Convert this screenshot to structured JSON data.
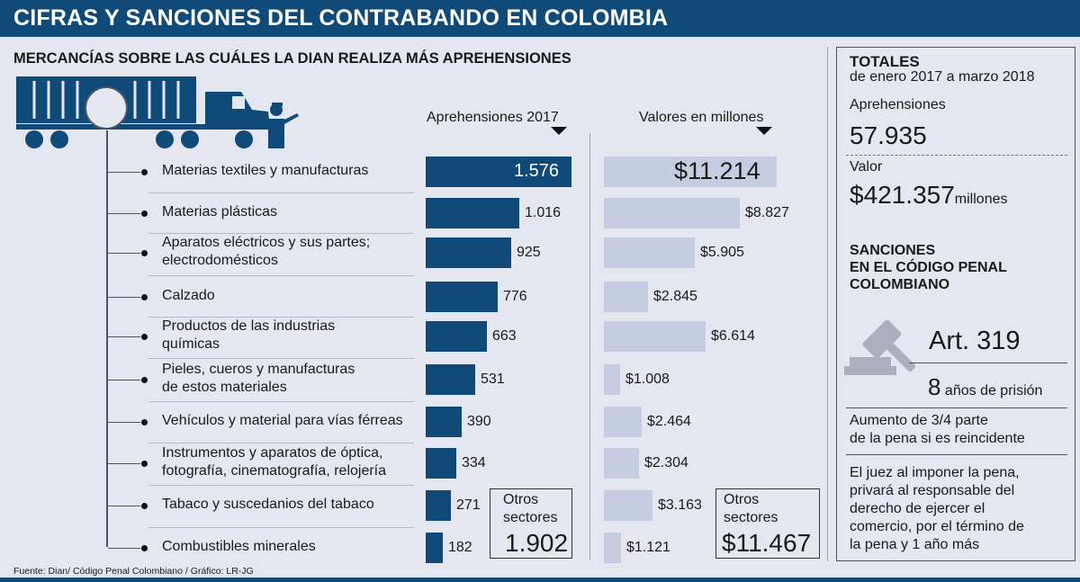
{
  "header": {
    "title": "CIFRAS Y SANCIONES DEL CONTRABANDO EN COLOMBIA"
  },
  "subtitle": "MERCANCÍAS SOBRE LAS CUÁLES LA DIAN REALIZA MÁS APREHENSIONES",
  "col_heads": {
    "apprehensions": "Aprehensiones 2017",
    "values": "Valores en millones"
  },
  "colors": {
    "header": "#0f4a78",
    "bar": "#0f4a78",
    "value_bar": "#c5cde2",
    "background": "#e4e7ef"
  },
  "chart_data": {
    "type": "bar",
    "categories": [
      "Materias textiles y manufacturas",
      "Materias plásticas",
      "Aparatos eléctricos y sus partes; electrodomésticos",
      "Calzado",
      "Productos de las industrias químicas",
      "Pieles, cueros y manufacturas de estos materiales",
      "Vehículos y material para vías férreas",
      "Instrumentos y aparatos de óptica, fotografía, cinematografía, relojería",
      "Tabaco y suscedanios del tabaco",
      "Combustibles minerales"
    ],
    "category_lines": [
      [
        "Materias textiles y manufacturas"
      ],
      [
        "Materias plásticas"
      ],
      [
        "Aparatos eléctricos y sus partes;",
        "electrodomésticos"
      ],
      [
        "Calzado"
      ],
      [
        "Productos de las industrias",
        "químicas"
      ],
      [
        "Pieles, cueros y manufacturas",
        "de estos materiales"
      ],
      [
        "Vehículos y material para vías férreas"
      ],
      [
        "Instrumentos y aparatos de óptica,",
        "fotografía, cinematografía, relojería"
      ],
      [
        "Tabaco y suscedanios del tabaco"
      ],
      [
        "Combustibles minerales"
      ]
    ],
    "series": [
      {
        "name": "Aprehensiones 2017",
        "values": [
          1576,
          1016,
          925,
          776,
          663,
          531,
          390,
          334,
          271,
          182
        ],
        "labels": [
          "1.576",
          "1.016",
          "925",
          "776",
          "663",
          "531",
          "390",
          "334",
          "271",
          "182"
        ]
      },
      {
        "name": "Valores en millones",
        "values": [
          11214,
          8827,
          5905,
          2845,
          6614,
          1008,
          2464,
          2304,
          3163,
          1121
        ],
        "labels": [
          "$11.214",
          "$8.827",
          "$5.905",
          "$2.845",
          "$6.614",
          "$1.008",
          "$2.464",
          "$2.304",
          "$3.163",
          "$1.121"
        ]
      }
    ],
    "others": {
      "label_lines": [
        "Otros",
        "sectores"
      ],
      "apprehensions": "1.902",
      "values": "$11.467"
    }
  },
  "totals": {
    "title": "TOTALES",
    "period": "de enero 2017 a marzo 2018",
    "apprehensions_label": "Aprehensiones",
    "apprehensions_value": "57.935",
    "value_label": "Valor",
    "value_amount": "$421.357",
    "value_unit": "millones"
  },
  "sanctions": {
    "title_lines": [
      "SANCIONES",
      "EN EL CÓDIGO PENAL",
      "COLOMBIANO"
    ],
    "article": "Art. 319",
    "years_num": "8",
    "years_text": "años de prisión",
    "increase_lines": [
      "Aumento de 3/4 parte",
      "de la pena si es reincidente"
    ],
    "judge_lines": [
      "El juez al imponer la pena,",
      "privará al responsable del",
      "derecho de ejercer el",
      "comercio, por el término de",
      "la pena y 1 año más"
    ]
  },
  "source": "Fuente: Dian/ Código Penal Colombiano / Gráfico: LR-JG"
}
